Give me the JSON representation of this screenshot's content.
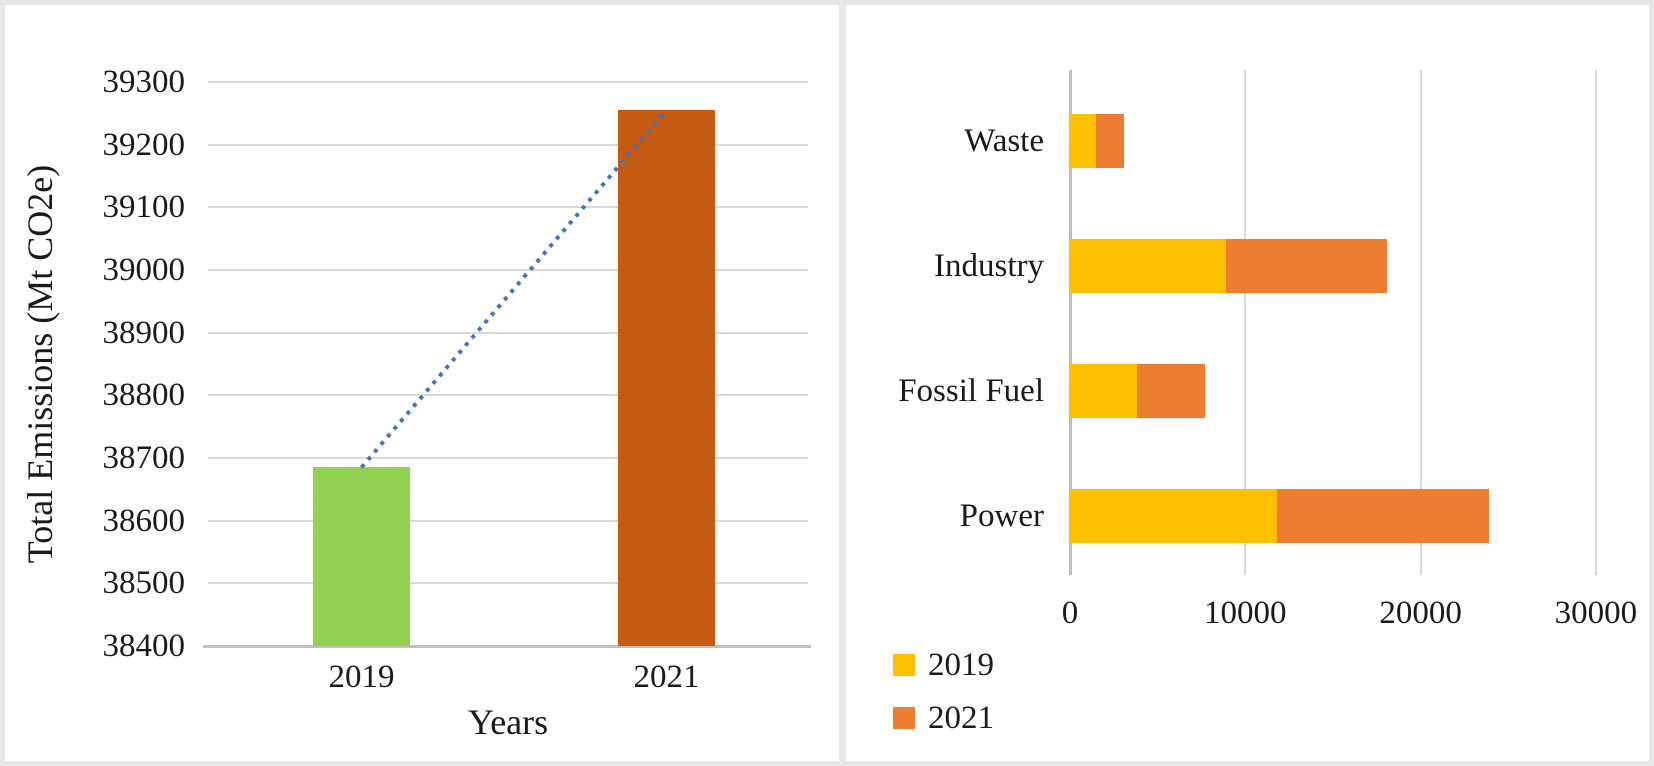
{
  "figure": {
    "background": "#ffffff",
    "frame_border_color": "#e7e7e7",
    "text_color": "#1a1a1a",
    "gridline_color": "#d9d9d9",
    "axisline_color": "#bfbfbf"
  },
  "chart_data": [
    {
      "type": "bar",
      "title": "",
      "categories": [
        "2019",
        "2021"
      ],
      "values": [
        38685,
        39255
      ],
      "bar_colors": [
        "#92D050",
        "#C55A11"
      ],
      "xlabel": "Years",
      "ylabel": "Total Emissions (Mt CO2e)",
      "ylim": [
        38400,
        39300
      ],
      "yticks": [
        38400,
        38500,
        38600,
        38700,
        38800,
        38900,
        39000,
        39100,
        39200,
        39300
      ],
      "grid": "horizontal",
      "legend": "none",
      "trendline": {
        "style": "dotted",
        "color": "#4472C4",
        "from_value": 38685,
        "to_value": 39255
      }
    },
    {
      "type": "bar",
      "orientation": "horizontal",
      "stacked": true,
      "categories_top_to_bottom": true,
      "categories": [
        "Waste",
        "Industry",
        "Fossil Fuel",
        "Power"
      ],
      "series": [
        {
          "name": "2019",
          "color": "#FFC000",
          "values": [
            1500,
            8900,
            3800,
            11800
          ]
        },
        {
          "name": "2021",
          "color": "#ED7D31",
          "values": [
            1600,
            9200,
            3900,
            12100
          ]
        }
      ],
      "xlim": [
        0,
        30000
      ],
      "xticks": [
        0,
        10000,
        20000,
        30000
      ],
      "grid": "vertical",
      "legend_position": "bottom-left"
    }
  ]
}
